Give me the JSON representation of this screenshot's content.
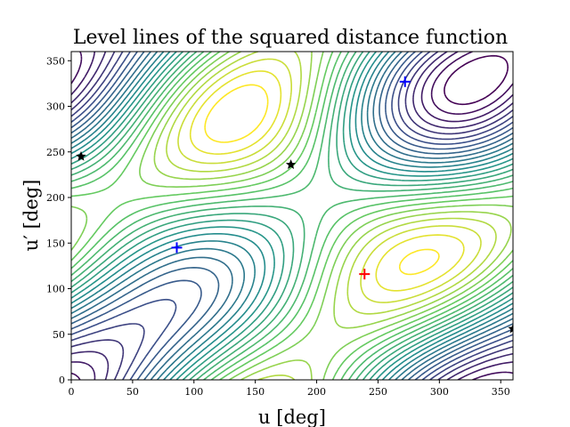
{
  "chart_data": {
    "type": "contour",
    "title": "Level lines of the squared distance function",
    "xlabel": "u [deg]",
    "ylabel": "u′ [deg]",
    "xlim": [
      0,
      360
    ],
    "ylim": [
      0,
      360
    ],
    "xticks": [
      "0",
      "50",
      "100",
      "150",
      "200",
      "250",
      "300",
      "350"
    ],
    "yticks": [
      "0",
      "50",
      "100",
      "150",
      "200",
      "250",
      "300",
      "350"
    ],
    "xtick_values": [
      0,
      50,
      100,
      150,
      200,
      250,
      300,
      350
    ],
    "ytick_values": [
      0,
      50,
      100,
      150,
      200,
      250,
      300,
      350
    ],
    "colormap": [
      "#440154",
      "#3b528b",
      "#21918c",
      "#5ec962",
      "#fde725"
    ],
    "markers": [
      {
        "kind": "plus",
        "color": "#0000ff",
        "x": 86,
        "y": 145
      },
      {
        "kind": "plus",
        "color": "#0000ff",
        "x": 272,
        "y": 327
      },
      {
        "kind": "plus",
        "color": "#ff0000",
        "x": 239,
        "y": 116
      },
      {
        "kind": "star",
        "color": "#000000",
        "x": 8,
        "y": 245
      },
      {
        "kind": "star",
        "color": "#000000",
        "x": 179,
        "y": 236
      },
      {
        "kind": "star",
        "color": "#000000",
        "x": 360,
        "y": 56
      }
    ],
    "grid": false
  }
}
